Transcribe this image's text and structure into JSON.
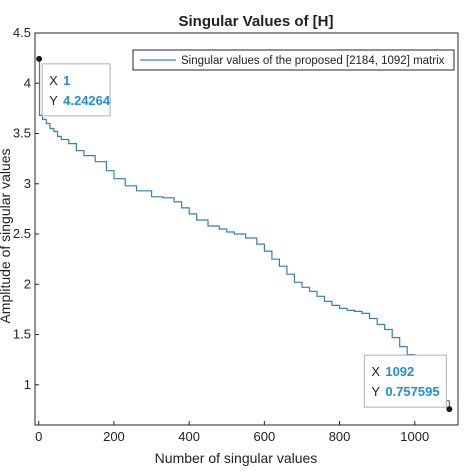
{
  "chart_data": {
    "type": "line",
    "title": "Singular Values of [H]",
    "xlabel": "Number of singular values",
    "ylabel": "Amplitude of singular values",
    "xlim": [
      -10,
      1115
    ],
    "ylim": [
      0.6,
      4.5
    ],
    "xticks": [
      0,
      200,
      400,
      600,
      800,
      1000
    ],
    "yticks": [
      1,
      1.5,
      2,
      2.5,
      3,
      3.5,
      4,
      4.5
    ],
    "grid": false,
    "legend_position": "top-right",
    "series": [
      {
        "name": "Singular values of the proposed [2184, 1092] matrix",
        "color": "#3a7fb0",
        "x": [
          1,
          2,
          10,
          20,
          30,
          40,
          50,
          60,
          80,
          100,
          120,
          150,
          180,
          200,
          230,
          260,
          300,
          330,
          360,
          380,
          400,
          420,
          450,
          480,
          500,
          520,
          550,
          580,
          600,
          620,
          640,
          660,
          680,
          700,
          720,
          740,
          760,
          780,
          800,
          820,
          840,
          860,
          880,
          900,
          920,
          940,
          960,
          980,
          1000,
          1020,
          1040,
          1060,
          1080,
          1092
        ],
        "y": [
          4.24264,
          3.68,
          3.64,
          3.6,
          3.55,
          3.52,
          3.47,
          3.44,
          3.4,
          3.33,
          3.28,
          3.22,
          3.13,
          3.05,
          2.98,
          2.93,
          2.87,
          2.86,
          2.82,
          2.76,
          2.7,
          2.64,
          2.58,
          2.55,
          2.52,
          2.5,
          2.46,
          2.4,
          2.33,
          2.25,
          2.18,
          2.1,
          2.02,
          1.97,
          1.93,
          1.88,
          1.83,
          1.79,
          1.76,
          1.74,
          1.73,
          1.71,
          1.66,
          1.6,
          1.55,
          1.47,
          1.38,
          1.3,
          1.22,
          1.12,
          1.03,
          0.95,
          0.84,
          0.757595
        ]
      }
    ],
    "datatips": [
      {
        "x_label": "X",
        "x_value": "1",
        "y_label": "Y",
        "y_value": "4.24264",
        "x": 1,
        "y": 4.24264,
        "anchor": "below-right"
      },
      {
        "x_label": "X",
        "x_value": "1092",
        "y_label": "Y",
        "y_value": "0.757595",
        "x": 1092,
        "y": 0.757595,
        "anchor": "above-left"
      }
    ]
  }
}
